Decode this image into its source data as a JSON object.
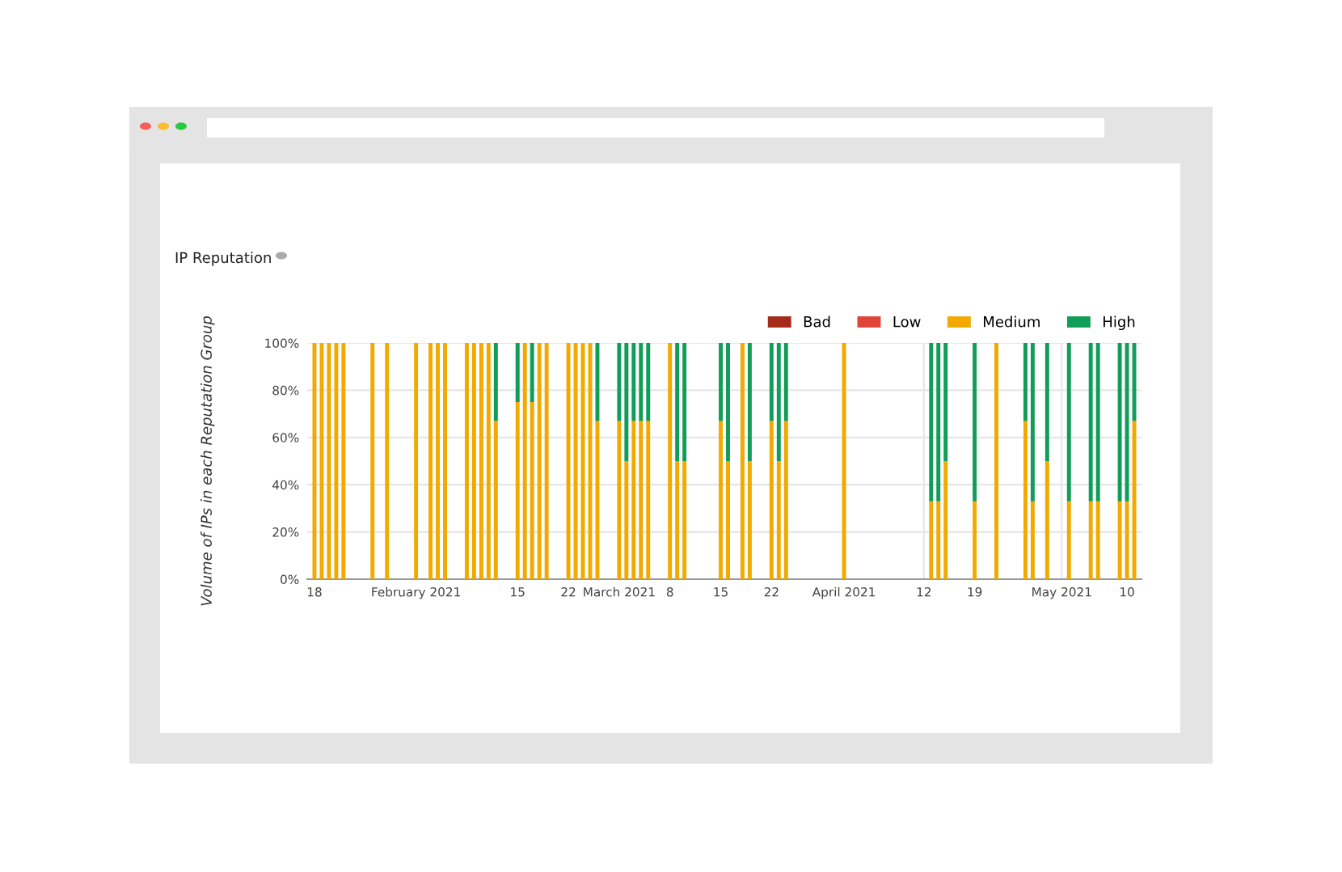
{
  "chart_data": {
    "type": "bar",
    "title": "IP Reputation",
    "ylabel": "Volume of IPs in each Reputation Group",
    "stacked": true,
    "x": [
      "2021-01-18",
      "2021-01-19",
      "2021-01-20",
      "2021-01-21",
      "2021-01-22",
      "2021-01-26",
      "2021-01-28",
      "2021-02-01",
      "2021-02-03",
      "2021-02-04",
      "2021-02-05",
      "2021-02-08",
      "2021-02-09",
      "2021-02-10",
      "2021-02-11",
      "2021-02-12",
      "2021-02-15",
      "2021-02-16",
      "2021-02-17",
      "2021-02-18",
      "2021-02-19",
      "2021-02-22",
      "2021-02-23",
      "2021-02-24",
      "2021-02-25",
      "2021-02-26",
      "2021-03-01",
      "2021-03-02",
      "2021-03-03",
      "2021-03-04",
      "2021-03-05",
      "2021-03-08",
      "2021-03-09",
      "2021-03-10",
      "2021-03-15",
      "2021-03-16",
      "2021-03-18",
      "2021-03-19",
      "2021-03-22",
      "2021-03-23",
      "2021-03-24",
      "2021-04-01",
      "2021-04-13",
      "2021-04-14",
      "2021-04-15",
      "2021-04-19",
      "2021-04-22",
      "2021-04-26",
      "2021-04-27",
      "2021-04-29",
      "2021-05-02",
      "2021-05-05",
      "2021-05-06",
      "2021-05-09",
      "2021-05-10",
      "2021-05-11"
    ],
    "series": [
      {
        "name": "Bad",
        "color": "#a52a1a",
        "values": [
          0,
          0,
          0,
          0,
          0,
          0,
          0,
          0,
          0,
          0,
          0,
          0,
          0,
          0,
          0,
          0,
          0,
          0,
          0,
          0,
          0,
          0,
          0,
          0,
          0,
          0,
          0,
          0,
          0,
          0,
          0,
          0,
          0,
          0,
          0,
          0,
          0,
          0,
          0,
          0,
          0,
          0,
          0,
          0,
          0,
          0,
          0,
          0,
          0,
          0,
          0,
          0,
          0,
          0,
          0,
          0
        ]
      },
      {
        "name": "Low",
        "color": "#e0453a",
        "values": [
          0,
          0,
          0,
          0,
          0,
          0,
          0,
          0,
          0,
          0,
          0,
          0,
          0,
          0,
          0,
          0,
          0,
          0,
          0,
          0,
          0,
          0,
          0,
          0,
          0,
          0,
          0,
          0,
          0,
          0,
          0,
          0,
          0,
          0,
          0,
          0,
          0,
          0,
          0,
          0,
          0,
          0,
          0,
          0,
          0,
          0,
          0,
          0,
          0,
          0,
          0,
          0,
          0,
          0,
          0,
          0
        ]
      },
      {
        "name": "Medium",
        "color": "#f2a900",
        "values": [
          100,
          100,
          100,
          100,
          100,
          100,
          100,
          100,
          100,
          100,
          100,
          100,
          100,
          100,
          100,
          67,
          75,
          100,
          75,
          100,
          100,
          100,
          100,
          100,
          100,
          67,
          67,
          50,
          67,
          67,
          67,
          100,
          50,
          50,
          67,
          50,
          100,
          50,
          67,
          50,
          67,
          100,
          33,
          33,
          50,
          33,
          100,
          67,
          33,
          50,
          33,
          33,
          33,
          33,
          33,
          67
        ]
      },
      {
        "name": "High",
        "color": "#109d58",
        "values": [
          0,
          0,
          0,
          0,
          0,
          0,
          0,
          0,
          0,
          0,
          0,
          0,
          0,
          0,
          0,
          33,
          25,
          0,
          25,
          0,
          0,
          0,
          0,
          0,
          0,
          33,
          33,
          50,
          33,
          33,
          33,
          0,
          50,
          50,
          33,
          50,
          0,
          50,
          33,
          50,
          33,
          0,
          67,
          67,
          50,
          67,
          0,
          33,
          67,
          50,
          67,
          67,
          67,
          67,
          67,
          33
        ]
      }
    ],
    "xlim": [
      "2021-01-17",
      "2021-05-12"
    ],
    "xticks": [
      {
        "value": "2021-01-18",
        "label": "18"
      },
      {
        "value": "2021-02-01",
        "label": "February 2021"
      },
      {
        "value": "2021-02-15",
        "label": "15"
      },
      {
        "value": "2021-02-22",
        "label": "22"
      },
      {
        "value": "2021-03-01",
        "label": "March 2021"
      },
      {
        "value": "2021-03-08",
        "label": "8"
      },
      {
        "value": "2021-03-15",
        "label": "15"
      },
      {
        "value": "2021-03-22",
        "label": "22"
      },
      {
        "value": "2021-04-01",
        "label": "April 2021"
      },
      {
        "value": "2021-04-12",
        "label": "12"
      },
      {
        "value": "2021-04-19",
        "label": "19"
      },
      {
        "value": "2021-05-01",
        "label": "May 2021"
      },
      {
        "value": "2021-05-10",
        "label": "10"
      }
    ],
    "ylim": [
      0,
      100
    ],
    "yticks": [
      {
        "value": 0,
        "label": "0%"
      },
      {
        "value": 20,
        "label": "20%"
      },
      {
        "value": 40,
        "label": "40%"
      },
      {
        "value": 60,
        "label": "60%"
      },
      {
        "value": 80,
        "label": "80%"
      },
      {
        "value": 100,
        "label": "100%"
      }
    ],
    "grid": true,
    "legend": "top right"
  }
}
